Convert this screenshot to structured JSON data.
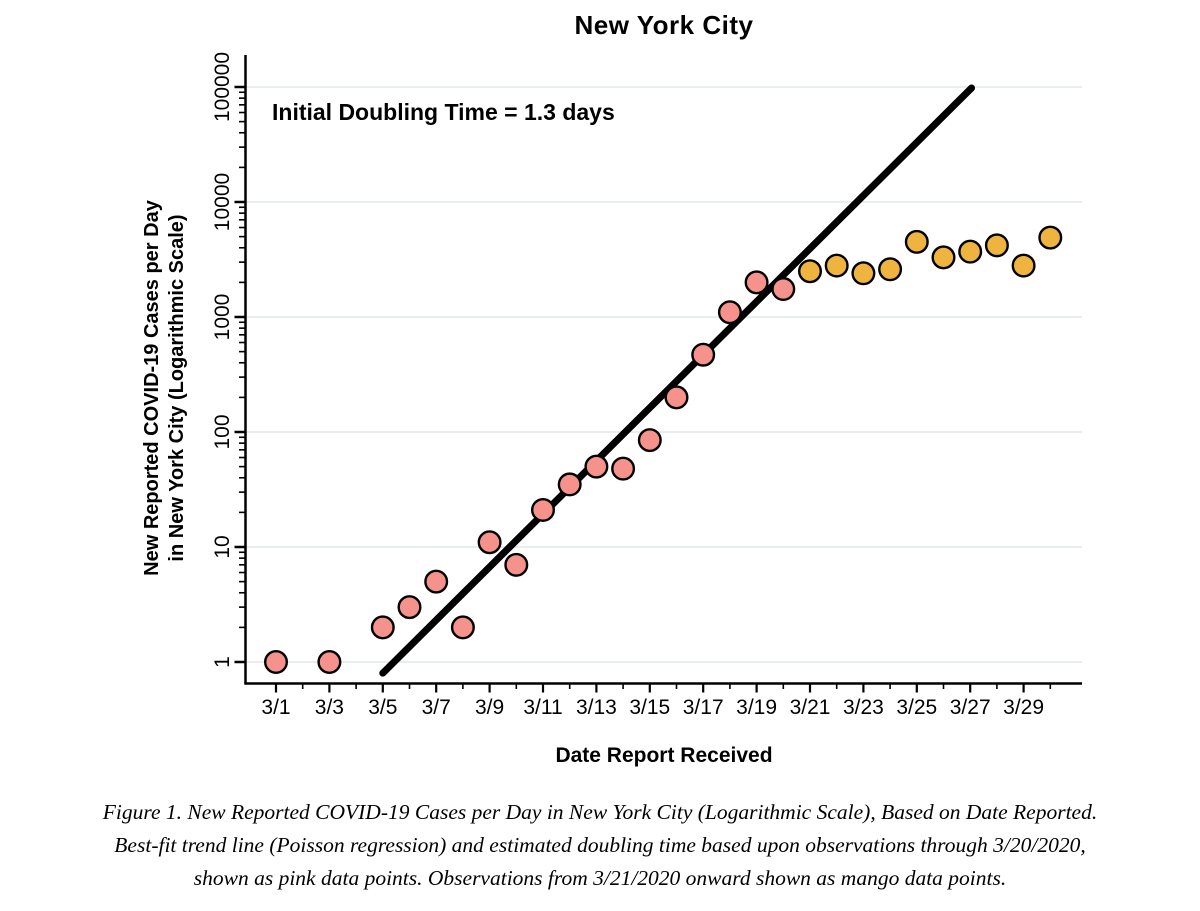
{
  "title": "New York City",
  "annotation": "Initial Doubling Time = 1.3 days",
  "chart_data": {
    "type": "scatter",
    "title": "New York City",
    "xlabel": "Date Report Received",
    "ylabel_line1": "New Reported COVID-19 Cases per Day",
    "ylabel_line2": "in New York City (Logarithmic Scale)",
    "y_scale": "log10",
    "y_ticks": [
      1,
      10,
      100,
      1000,
      10000,
      100000
    ],
    "ylim": [
      0.7,
      150000
    ],
    "x_tick_labels": [
      "3/1",
      "3/3",
      "3/5",
      "3/7",
      "3/9",
      "3/11",
      "3/13",
      "3/15",
      "3/17",
      "3/19",
      "3/21",
      "3/23",
      "3/25",
      "3/27",
      "3/29"
    ],
    "grid": "horizontal-only",
    "series": [
      {
        "name": "pink",
        "description": "Observations through 3/20/2020",
        "color": "#f5928b",
        "points": [
          [
            "3/1",
            1
          ],
          [
            "3/3",
            1
          ],
          [
            "3/5",
            2
          ],
          [
            "3/6",
            3
          ],
          [
            "3/7",
            5
          ],
          [
            "3/8",
            2
          ],
          [
            "3/9",
            11
          ],
          [
            "3/10",
            7
          ],
          [
            "3/11",
            21
          ],
          [
            "3/12",
            35
          ],
          [
            "3/13",
            50
          ],
          [
            "3/14",
            48
          ],
          [
            "3/15",
            85
          ],
          [
            "3/16",
            200
          ],
          [
            "3/17",
            470
          ],
          [
            "3/18",
            1100
          ],
          [
            "3/19",
            2000
          ],
          [
            "3/20",
            1750
          ]
        ]
      },
      {
        "name": "mango",
        "description": "Observations from 3/21/2020 onward",
        "color": "#efb440",
        "points": [
          [
            "3/21",
            2500
          ],
          [
            "3/22",
            2800
          ],
          [
            "3/23",
            2400
          ],
          [
            "3/24",
            2600
          ],
          [
            "3/25",
            4500
          ],
          [
            "3/26",
            3300
          ],
          [
            "3/27",
            3700
          ],
          [
            "3/28",
            4200
          ],
          [
            "3/29",
            2800
          ],
          [
            "3/30",
            4900
          ]
        ]
      }
    ],
    "trend_line": {
      "label": "Best-fit trend line (Poisson regression)",
      "doubling_time_days": 1.3,
      "start_day": 5.0,
      "start_value": 0.8,
      "end_day": 27.05,
      "end_value": 98000,
      "color": "#000000"
    }
  },
  "colors": {
    "pink_point": "#f5928b",
    "mango_point": "#efb440",
    "gridline": "#e8eef0",
    "axis": "#000000"
  },
  "caption": {
    "lines": [
      "Figure 1. New Reported COVID-19 Cases per Day in New York City (Logarithmic Scale), Based on Date Reported.",
      "Best-fit trend line (Poisson regression) and estimated doubling time based upon observations through 3/20/2020,",
      "shown as pink data points. Observations from 3/21/2020 onward shown as mango data points."
    ]
  }
}
